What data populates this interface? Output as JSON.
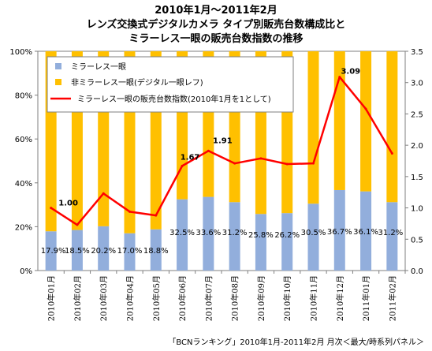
{
  "chart_data": {
    "type": "bar",
    "title_lines": [
      "2010年1月～2011年2月",
      "レンズ交換式デジタルカメラ タイプ別販売台数構成比と",
      "ミラーレス一眼の販売台数指数の推移"
    ],
    "categories": [
      "2010年01月",
      "2010年02月",
      "2010年03月",
      "2010年04月",
      "2010年05月",
      "2010年06月",
      "2010年07月",
      "2010年08月",
      "2010年09月",
      "2010年10月",
      "2010年11月",
      "2010年12月",
      "2011年01月",
      "2011年02月"
    ],
    "series": [
      {
        "name": "ミラーレス一眼",
        "color": "#92aedc",
        "values": [
          17.9,
          18.5,
          20.2,
          17.0,
          18.8,
          32.5,
          33.6,
          31.2,
          25.8,
          26.2,
          30.5,
          36.7,
          36.1,
          31.2
        ],
        "labels": [
          "17.9%",
          "18.5%",
          "20.2%",
          "17.0%",
          "18.8%",
          "32.5%",
          "33.6%",
          "31.2%",
          "25.8%",
          "26.2%",
          "30.5%",
          "36.7%",
          "36.1%",
          "31.2%"
        ]
      },
      {
        "name": "非ミラーレス一眼(デジタル一眼レフ)",
        "color": "#ffc000",
        "values": [
          82.1,
          81.5,
          79.8,
          83.0,
          81.2,
          67.5,
          66.4,
          68.8,
          74.2,
          73.8,
          69.5,
          63.3,
          63.9,
          68.8
        ]
      },
      {
        "name": "ミラーレス一眼の販売台数指数(2010年1月を1として)",
        "color": "#ff0000",
        "axis": "right",
        "values": [
          1.0,
          0.73,
          1.23,
          0.94,
          0.88,
          1.67,
          1.91,
          1.71,
          1.79,
          1.7,
          1.71,
          3.09,
          2.58,
          1.87
        ],
        "point_labels": [
          {
            "index": 0,
            "text": "1.00"
          },
          {
            "index": 5,
            "text": "1.67"
          },
          {
            "index": 6,
            "text": "1.91"
          },
          {
            "index": 11,
            "text": "3.09"
          }
        ]
      }
    ],
    "y_left": {
      "ylim": [
        0,
        100
      ],
      "ticks": [
        "0%",
        "20%",
        "40%",
        "60%",
        "80%",
        "100%"
      ]
    },
    "y_right": {
      "ylim": [
        0,
        3.5
      ],
      "ticks": [
        "0.0",
        "0.5",
        "1.0",
        "1.5",
        "2.0",
        "2.5",
        "3.0",
        "3.5"
      ]
    },
    "grid": false,
    "legend": "top-left",
    "source": "「BCNランキング」2010年1月-2011年2月 月次＜最大/時系列パネル＞"
  }
}
